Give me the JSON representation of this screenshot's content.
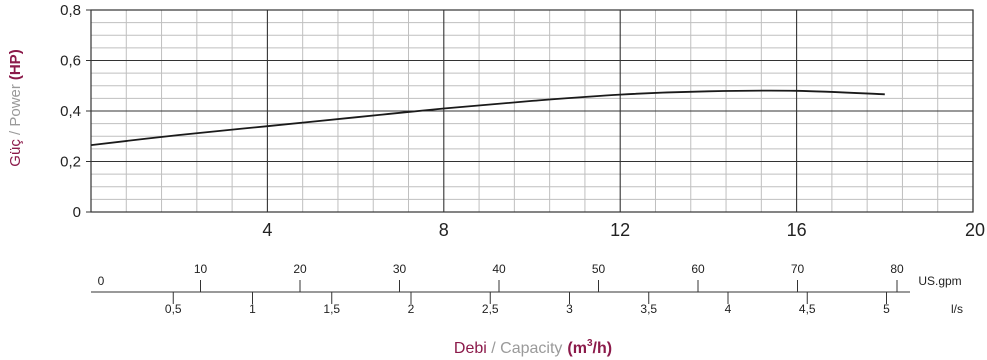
{
  "colors": {
    "accent": "#8b1a4a",
    "muted": "#9a9a9a",
    "curve": "#1a1a1a",
    "major_grid": "#333333",
    "minor_grid": "#bfbfbf"
  },
  "chart_data": {
    "type": "line",
    "x_unit_label": {
      "main": "Debi",
      "sep": " / ",
      "secondary": "Capacity",
      "unit_pre": "(m",
      "unit_sup": "3",
      "unit_post": "/h)"
    },
    "y_label": {
      "main": "Güç",
      "sep": " / ",
      "secondary": "Power",
      "unit": "(HP)"
    },
    "xlim": [
      0,
      20
    ],
    "ylim": [
      0,
      0.8
    ],
    "x_ticks": [
      {
        "v": 4,
        "label": "4"
      },
      {
        "v": 8,
        "label": "8"
      },
      {
        "v": 12,
        "label": "12"
      },
      {
        "v": 16,
        "label": "16"
      },
      {
        "v": 20,
        "label": "20"
      }
    ],
    "y_ticks": [
      {
        "v": 0,
        "label": "0"
      },
      {
        "v": 0.2,
        "label": "0,2"
      },
      {
        "v": 0.4,
        "label": "0,4"
      },
      {
        "v": 0.6,
        "label": "0,6"
      },
      {
        "v": 0.8,
        "label": "0,8"
      }
    ],
    "grid": true,
    "series": [
      {
        "x": [
          0,
          2,
          4,
          6,
          8,
          10,
          12,
          14,
          16,
          18
        ],
        "y": [
          0.265,
          0.305,
          0.34,
          0.375,
          0.41,
          0.44,
          0.465,
          0.478,
          0.48,
          0.466
        ]
      }
    ],
    "secondary_axes": [
      {
        "unit": "US.gpm",
        "per_m3h": 4.4029,
        "ticks": [
          {
            "v": 0,
            "label": "0"
          },
          {
            "v": 10,
            "label": "10"
          },
          {
            "v": 20,
            "label": "20"
          },
          {
            "v": 30,
            "label": "30"
          },
          {
            "v": 40,
            "label": "40"
          },
          {
            "v": 50,
            "label": "50"
          },
          {
            "v": 60,
            "label": "60"
          },
          {
            "v": 70,
            "label": "70"
          },
          {
            "v": 80,
            "label": "80"
          }
        ]
      },
      {
        "unit": "l/s",
        "per_m3h": 0.27778,
        "ticks": [
          {
            "v": 0.5,
            "label": "0,5"
          },
          {
            "v": 1,
            "label": "1"
          },
          {
            "v": 1.5,
            "label": "1,5"
          },
          {
            "v": 2,
            "label": "2"
          },
          {
            "v": 2.5,
            "label": "2,5"
          },
          {
            "v": 3,
            "label": "3"
          },
          {
            "v": 3.5,
            "label": "3,5"
          },
          {
            "v": 4,
            "label": "4"
          },
          {
            "v": 4.5,
            "label": "4,5"
          },
          {
            "v": 5,
            "label": "5"
          }
        ]
      }
    ]
  }
}
